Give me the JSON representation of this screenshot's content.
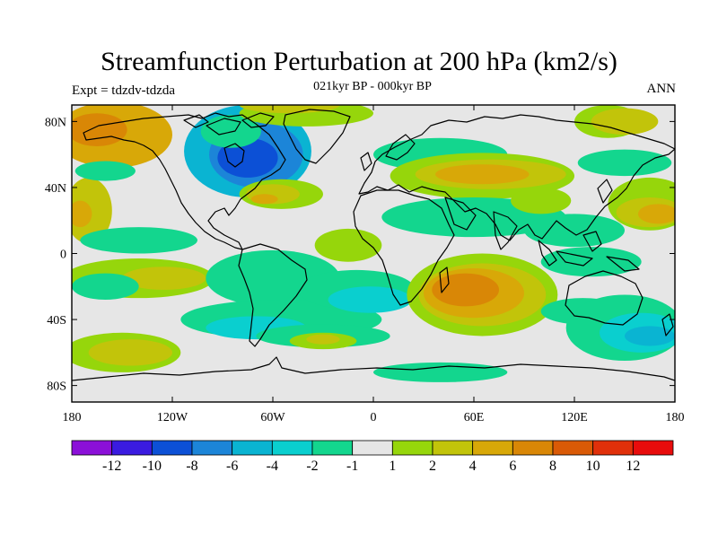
{
  "title": "Streamfunction Perturbation at 200 hPa (km2/s)",
  "subtitle": "021kyr BP - 000kyr BP",
  "left_label": "Expt = tdzdv-tdzda",
  "right_label": "ANN",
  "map": {
    "projection": "cylindrical equidistant",
    "lon_range": [
      -180,
      180
    ],
    "lat_range": [
      -90,
      90
    ],
    "lat_ticks": [
      {
        "value": 80,
        "label": "80N"
      },
      {
        "value": 40,
        "label": "40N"
      },
      {
        "value": 0,
        "label": "0"
      },
      {
        "value": -40,
        "label": "40S"
      },
      {
        "value": -80,
        "label": "80S"
      }
    ],
    "lon_ticks": [
      {
        "value": -180,
        "label": "180"
      },
      {
        "value": -120,
        "label": "120W"
      },
      {
        "value": -60,
        "label": "60W"
      },
      {
        "value": 0,
        "label": "0"
      },
      {
        "value": 60,
        "label": "60E"
      },
      {
        "value": 120,
        "label": "120E"
      },
      {
        "value": 180,
        "label": "180"
      }
    ],
    "background_color": "#e6e6e6",
    "field_blobs": [
      {
        "lon": -155,
        "lat": 72,
        "rlon": 35,
        "rlat": 20,
        "level": 4
      },
      {
        "lon": -165,
        "lat": 75,
        "rlon": 18,
        "rlat": 10,
        "level": 5
      },
      {
        "lon": -170,
        "lat": 26,
        "rlon": 14,
        "rlat": 20,
        "level": 2
      },
      {
        "lon": -175,
        "lat": 24,
        "rlon": 7,
        "rlat": 8,
        "level": 4
      },
      {
        "lon": -140,
        "lat": 8,
        "rlon": 35,
        "rlat": 8,
        "level": -1
      },
      {
        "lon": -140,
        "lat": -15,
        "rlon": 45,
        "rlat": 12,
        "level": 1
      },
      {
        "lon": -125,
        "lat": -15,
        "rlon": 25,
        "rlat": 7,
        "level": 2
      },
      {
        "lon": -160,
        "lat": -20,
        "rlon": 20,
        "rlat": 8,
        "level": -1
      },
      {
        "lon": -150,
        "lat": -60,
        "rlon": 35,
        "rlat": 12,
        "level": 1
      },
      {
        "lon": -145,
        "lat": -60,
        "rlon": 25,
        "rlat": 8,
        "level": 2
      },
      {
        "lon": -160,
        "lat": 50,
        "rlon": 18,
        "rlat": 6,
        "level": -1
      },
      {
        "lon": -75,
        "lat": 62,
        "rlon": 38,
        "rlat": 28,
        "level": -4
      },
      {
        "lon": -70,
        "lat": 60,
        "rlon": 28,
        "rlat": 20,
        "level": -6
      },
      {
        "lon": -75,
        "lat": 58,
        "rlon": 18,
        "rlat": 12,
        "level": -8
      },
      {
        "lon": -85,
        "lat": 74,
        "rlon": 18,
        "rlat": 10,
        "level": -1
      },
      {
        "lon": -55,
        "lat": 36,
        "rlon": 25,
        "rlat": 9,
        "level": 1
      },
      {
        "lon": -60,
        "lat": 36,
        "rlon": 16,
        "rlat": 6,
        "level": 2
      },
      {
        "lon": -65,
        "lat": 33,
        "rlon": 8,
        "rlat": 3,
        "level": 4
      },
      {
        "lon": -40,
        "lat": 85,
        "rlon": 40,
        "rlat": 8,
        "level": 1
      },
      {
        "lon": -50,
        "lat": 90,
        "rlon": 30,
        "rlat": 5,
        "level": 2
      },
      {
        "lon": -60,
        "lat": -15,
        "rlon": 40,
        "rlat": 17,
        "level": -1
      },
      {
        "lon": -55,
        "lat": -40,
        "rlon": 60,
        "rlat": 12,
        "level": -1
      },
      {
        "lon": -70,
        "lat": -45,
        "rlon": 30,
        "rlat": 7,
        "level": -2
      },
      {
        "lon": -30,
        "lat": -50,
        "rlon": 40,
        "rlat": 7,
        "level": -1
      },
      {
        "lon": -30,
        "lat": -53,
        "rlon": 20,
        "rlat": 5,
        "level": 1
      },
      {
        "lon": -30,
        "lat": -52,
        "rlon": 10,
        "rlat": 3,
        "level": 2
      },
      {
        "lon": -15,
        "lat": 5,
        "rlon": 20,
        "rlat": 10,
        "level": 1
      },
      {
        "lon": -10,
        "lat": -22,
        "rlon": 35,
        "rlat": 12,
        "level": -1
      },
      {
        "lon": -2,
        "lat": -28,
        "rlon": 25,
        "rlat": 8,
        "level": -2
      },
      {
        "lon": 40,
        "lat": 60,
        "rlon": 40,
        "rlat": 10,
        "level": -1
      },
      {
        "lon": 65,
        "lat": 47,
        "rlon": 55,
        "rlat": 14,
        "level": 1
      },
      {
        "lon": 70,
        "lat": 48,
        "rlon": 45,
        "rlat": 9,
        "level": 2
      },
      {
        "lon": 65,
        "lat": 48,
        "rlon": 28,
        "rlat": 6,
        "level": 4
      },
      {
        "lon": 60,
        "lat": 22,
        "rlon": 55,
        "rlat": 12,
        "level": -1
      },
      {
        "lon": 120,
        "lat": 14,
        "rlon": 30,
        "rlat": 10,
        "level": -1
      },
      {
        "lon": 100,
        "lat": 32,
        "rlon": 18,
        "rlat": 8,
        "level": 1
      },
      {
        "lon": 140,
        "lat": 80,
        "rlon": 20,
        "rlat": 10,
        "level": 1
      },
      {
        "lon": 150,
        "lat": 80,
        "rlon": 20,
        "rlat": 8,
        "level": 2
      },
      {
        "lon": 165,
        "lat": 30,
        "rlon": 25,
        "rlat": 16,
        "level": 1
      },
      {
        "lon": 165,
        "lat": 25,
        "rlon": 20,
        "rlat": 9,
        "level": 2
      },
      {
        "lon": 170,
        "lat": 24,
        "rlon": 12,
        "rlat": 6,
        "level": 4
      },
      {
        "lon": 150,
        "lat": 55,
        "rlon": 28,
        "rlat": 8,
        "level": -1
      },
      {
        "lon": 65,
        "lat": -25,
        "rlon": 45,
        "rlat": 25,
        "level": 1
      },
      {
        "lon": 65,
        "lat": -25,
        "rlon": 38,
        "rlat": 19,
        "level": 2
      },
      {
        "lon": 60,
        "lat": -24,
        "rlon": 30,
        "rlat": 15,
        "level": 4
      },
      {
        "lon": 55,
        "lat": -22,
        "rlon": 20,
        "rlat": 10,
        "level": 5
      },
      {
        "lon": 130,
        "lat": -5,
        "rlon": 30,
        "rlat": 9,
        "level": -1
      },
      {
        "lon": 125,
        "lat": -35,
        "rlon": 25,
        "rlat": 8,
        "level": -1
      },
      {
        "lon": 150,
        "lat": -45,
        "rlon": 35,
        "rlat": 20,
        "level": -1
      },
      {
        "lon": 160,
        "lat": -48,
        "rlon": 25,
        "rlat": 12,
        "level": -2
      },
      {
        "lon": 165,
        "lat": -50,
        "rlon": 15,
        "rlat": 6,
        "level": -4
      },
      {
        "lon": 40,
        "lat": -72,
        "rlon": 40,
        "rlat": 6,
        "level": -1
      }
    ]
  },
  "colorbar": {
    "colors": [
      "#8b10d8",
      "#3a1be0",
      "#0c50d6",
      "#1c85d8",
      "#0ab4d2",
      "#0acfcf",
      "#13d68e",
      "#e6e6e6",
      "#96d60b",
      "#c2c40a",
      "#d8a808",
      "#d98706",
      "#d95a06",
      "#e0300a",
      "#e80c0c"
    ],
    "labels": [
      "-12",
      "-10",
      "-8",
      "-6",
      "-4",
      "-2",
      "-1",
      "1",
      "2",
      "4",
      "6",
      "8",
      "10",
      "12"
    ]
  },
  "level_colors": {
    "-12": "#8b10d8",
    "-10": "#3a1be0",
    "-8": "#0c50d6",
    "-6": "#1c85d8",
    "-4": "#0ab4d2",
    "-2": "#0acfcf",
    "-1": "#13d68e",
    "1": "#96d60b",
    "2": "#c2c40a",
    "4": "#d8a808",
    "5": "#d98706"
  }
}
